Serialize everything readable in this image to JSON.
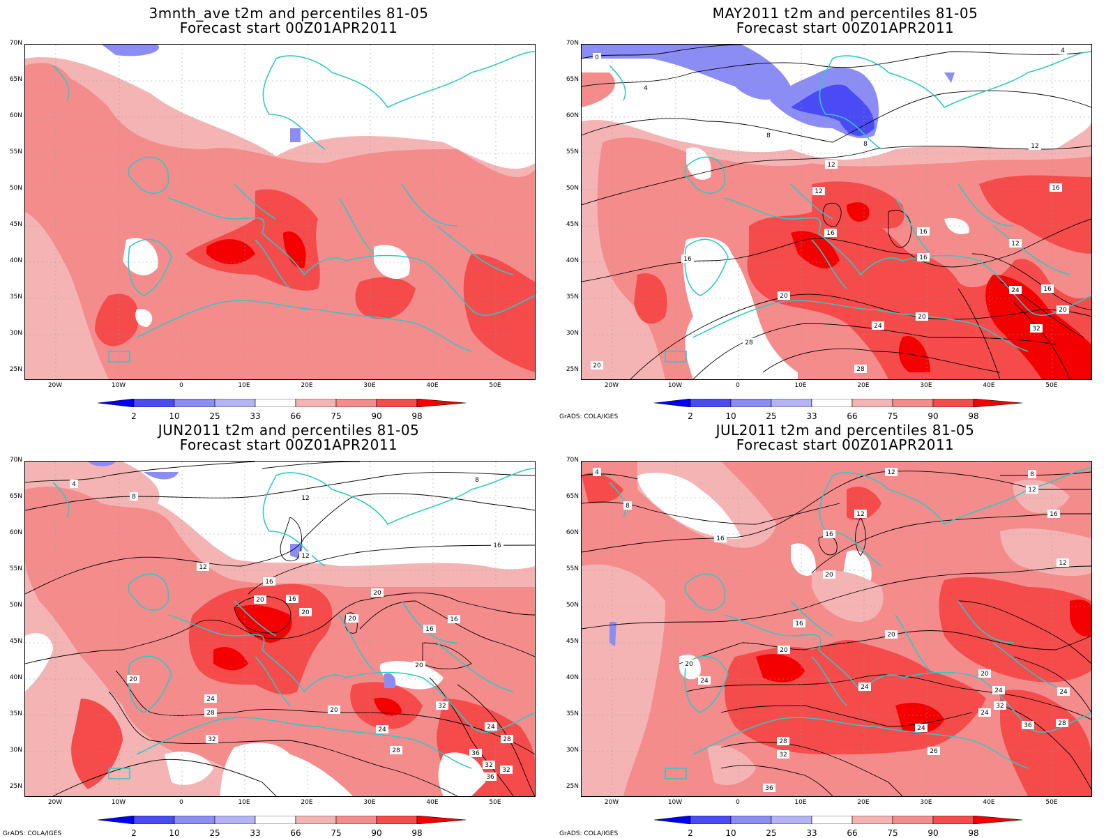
{
  "panels": [
    {
      "title1": "3mnth_ave t2m and percentiles 81-05",
      "title2": "Forecast start 00Z01APR2011",
      "credit": ""
    },
    {
      "title1": "MAY2011 t2m and percentiles 81-05",
      "title2": "Forecast start 00Z01APR2011",
      "credit": "GrADS: COLA/IGES"
    },
    {
      "title1": "JUN2011 t2m and percentiles 81-05",
      "title2": "Forecast start 00Z01APR2011",
      "credit": "GrADS: COLA/IGES"
    },
    {
      "title1": "JUL2011 t2m and percentiles 81-05",
      "title2": "Forecast start 00Z01APR2011",
      "credit": "GrADS: COLA/IGES"
    }
  ],
  "lat_labels": [
    "70N",
    "65N",
    "60N",
    "55N",
    "50N",
    "45N",
    "40N",
    "35N",
    "30N",
    "25N"
  ],
  "lon_labels": [
    "20W",
    "10W",
    "0",
    "10E",
    "20E",
    "30E",
    "40E",
    "50E"
  ],
  "colorbar": {
    "labels": [
      "2",
      "10",
      "25",
      "33",
      "66",
      "75",
      "90",
      "98"
    ],
    "colors": [
      "#0000f5",
      "#4b4bf5",
      "#8c8cf5",
      "#b4b4f5",
      "#ffffff",
      "#f5b4b4",
      "#f58c8c",
      "#f54b4b",
      "#f50000"
    ]
  },
  "contour_labels": {
    "may": [
      "0",
      "4",
      "4",
      "8",
      "8",
      "12",
      "12",
      "12",
      "16",
      "16",
      "16",
      "16",
      "16",
      "12",
      "16",
      "20",
      "20",
      "24",
      "24",
      "28",
      "20",
      "32",
      "20",
      "28"
    ],
    "jun": [
      "4",
      "8",
      "8",
      "12",
      "12",
      "16",
      "16",
      "12",
      "16",
      "20",
      "20",
      "20",
      "20",
      "20",
      "16",
      "16",
      "20",
      "24",
      "28",
      "32",
      "20",
      "24",
      "32",
      "28",
      "24",
      "28",
      "36",
      "32",
      "36",
      "32"
    ],
    "jul": [
      "4",
      "8",
      "8",
      "12",
      "12",
      "16",
      "12",
      "16",
      "16",
      "20",
      "12",
      "16",
      "20",
      "20",
      "24",
      "24",
      "20",
      "24",
      "20",
      "24",
      "28",
      "32",
      "32",
      "24",
      "36",
      "26",
      "36",
      "28",
      "24"
    ]
  }
}
